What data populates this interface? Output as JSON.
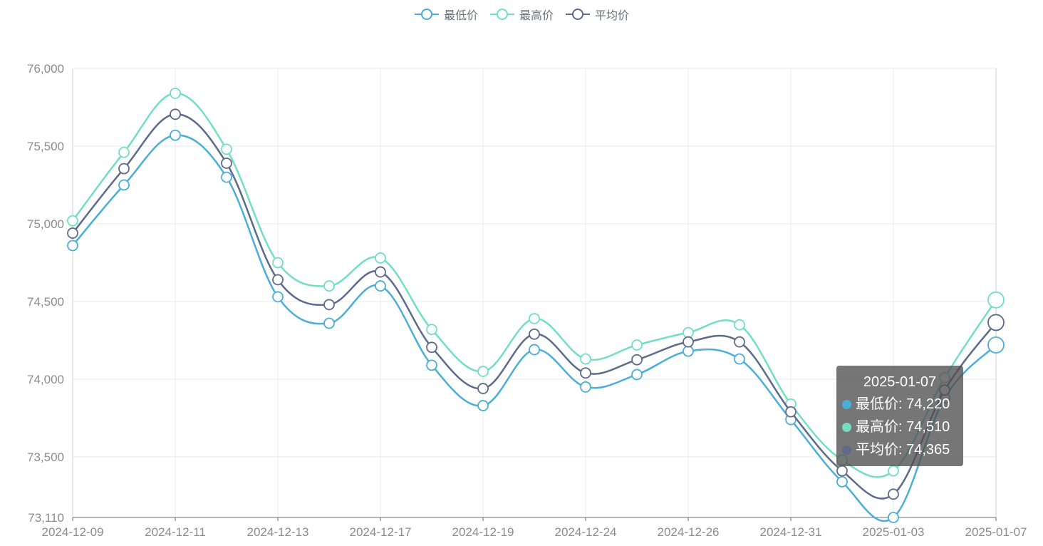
{
  "legend": {
    "items": [
      {
        "label": "最低价",
        "color": "#4aaed6"
      },
      {
        "label": "最高价",
        "color": "#72dfc1"
      },
      {
        "label": "平均价",
        "color": "#5e6a8a"
      }
    ]
  },
  "tooltip": {
    "title": "2025-01-07",
    "rows": [
      {
        "label": "最低价: 74,220",
        "color": "#4aaed6"
      },
      {
        "label": "最高价: 74,510",
        "color": "#72dfc1"
      },
      {
        "label": "平均价: 74,365",
        "color": "#5e6a8a"
      }
    ]
  },
  "chart_data": {
    "type": "line",
    "smooth": true,
    "x": [
      "2024-12-09",
      "2024-12-10",
      "2024-12-11",
      "2024-12-12",
      "2024-12-13",
      "2024-12-16",
      "2024-12-17",
      "2024-12-18",
      "2024-12-19",
      "2024-12-20",
      "2024-12-24",
      "2024-12-25",
      "2024-12-26",
      "2024-12-27",
      "2024-12-31",
      "2025-01-02",
      "2025-01-03",
      "2025-01-06",
      "2025-01-07"
    ],
    "x_tick_labels": [
      "2024-12-09",
      "2024-12-11",
      "2024-12-13",
      "2024-12-17",
      "2024-12-19",
      "2024-12-24",
      "2024-12-26",
      "2024-12-31",
      "2025-01-03",
      "2025-01-07"
    ],
    "y_tick_labels": [
      "73,110",
      "73,500",
      "74,000",
      "74,500",
      "75,000",
      "75,500",
      "76,000"
    ],
    "ylim": [
      73110,
      76000
    ],
    "grid": true,
    "legend_position": "top-center",
    "series": [
      {
        "name": "最低价",
        "color": "#4aaed6",
        "values": [
          74860,
          75250,
          75570,
          75300,
          74530,
          74360,
          74600,
          74090,
          73830,
          74190,
          73950,
          74030,
          74180,
          74130,
          73740,
          73340,
          73110,
          73880,
          74220
        ]
      },
      {
        "name": "最高价",
        "color": "#72dfc1",
        "values": [
          75020,
          75460,
          75840,
          75480,
          74750,
          74600,
          74780,
          74320,
          74050,
          74390,
          74130,
          74220,
          74300,
          74350,
          73840,
          73480,
          73410,
          74010,
          74510
        ]
      },
      {
        "name": "平均价",
        "color": "#5e6a8a",
        "values": [
          74940,
          75355,
          75705,
          75390,
          74640,
          74480,
          74690,
          74205,
          73940,
          74290,
          74040,
          74125,
          74240,
          74240,
          73790,
          73410,
          73260,
          73930,
          74365
        ]
      }
    ]
  }
}
